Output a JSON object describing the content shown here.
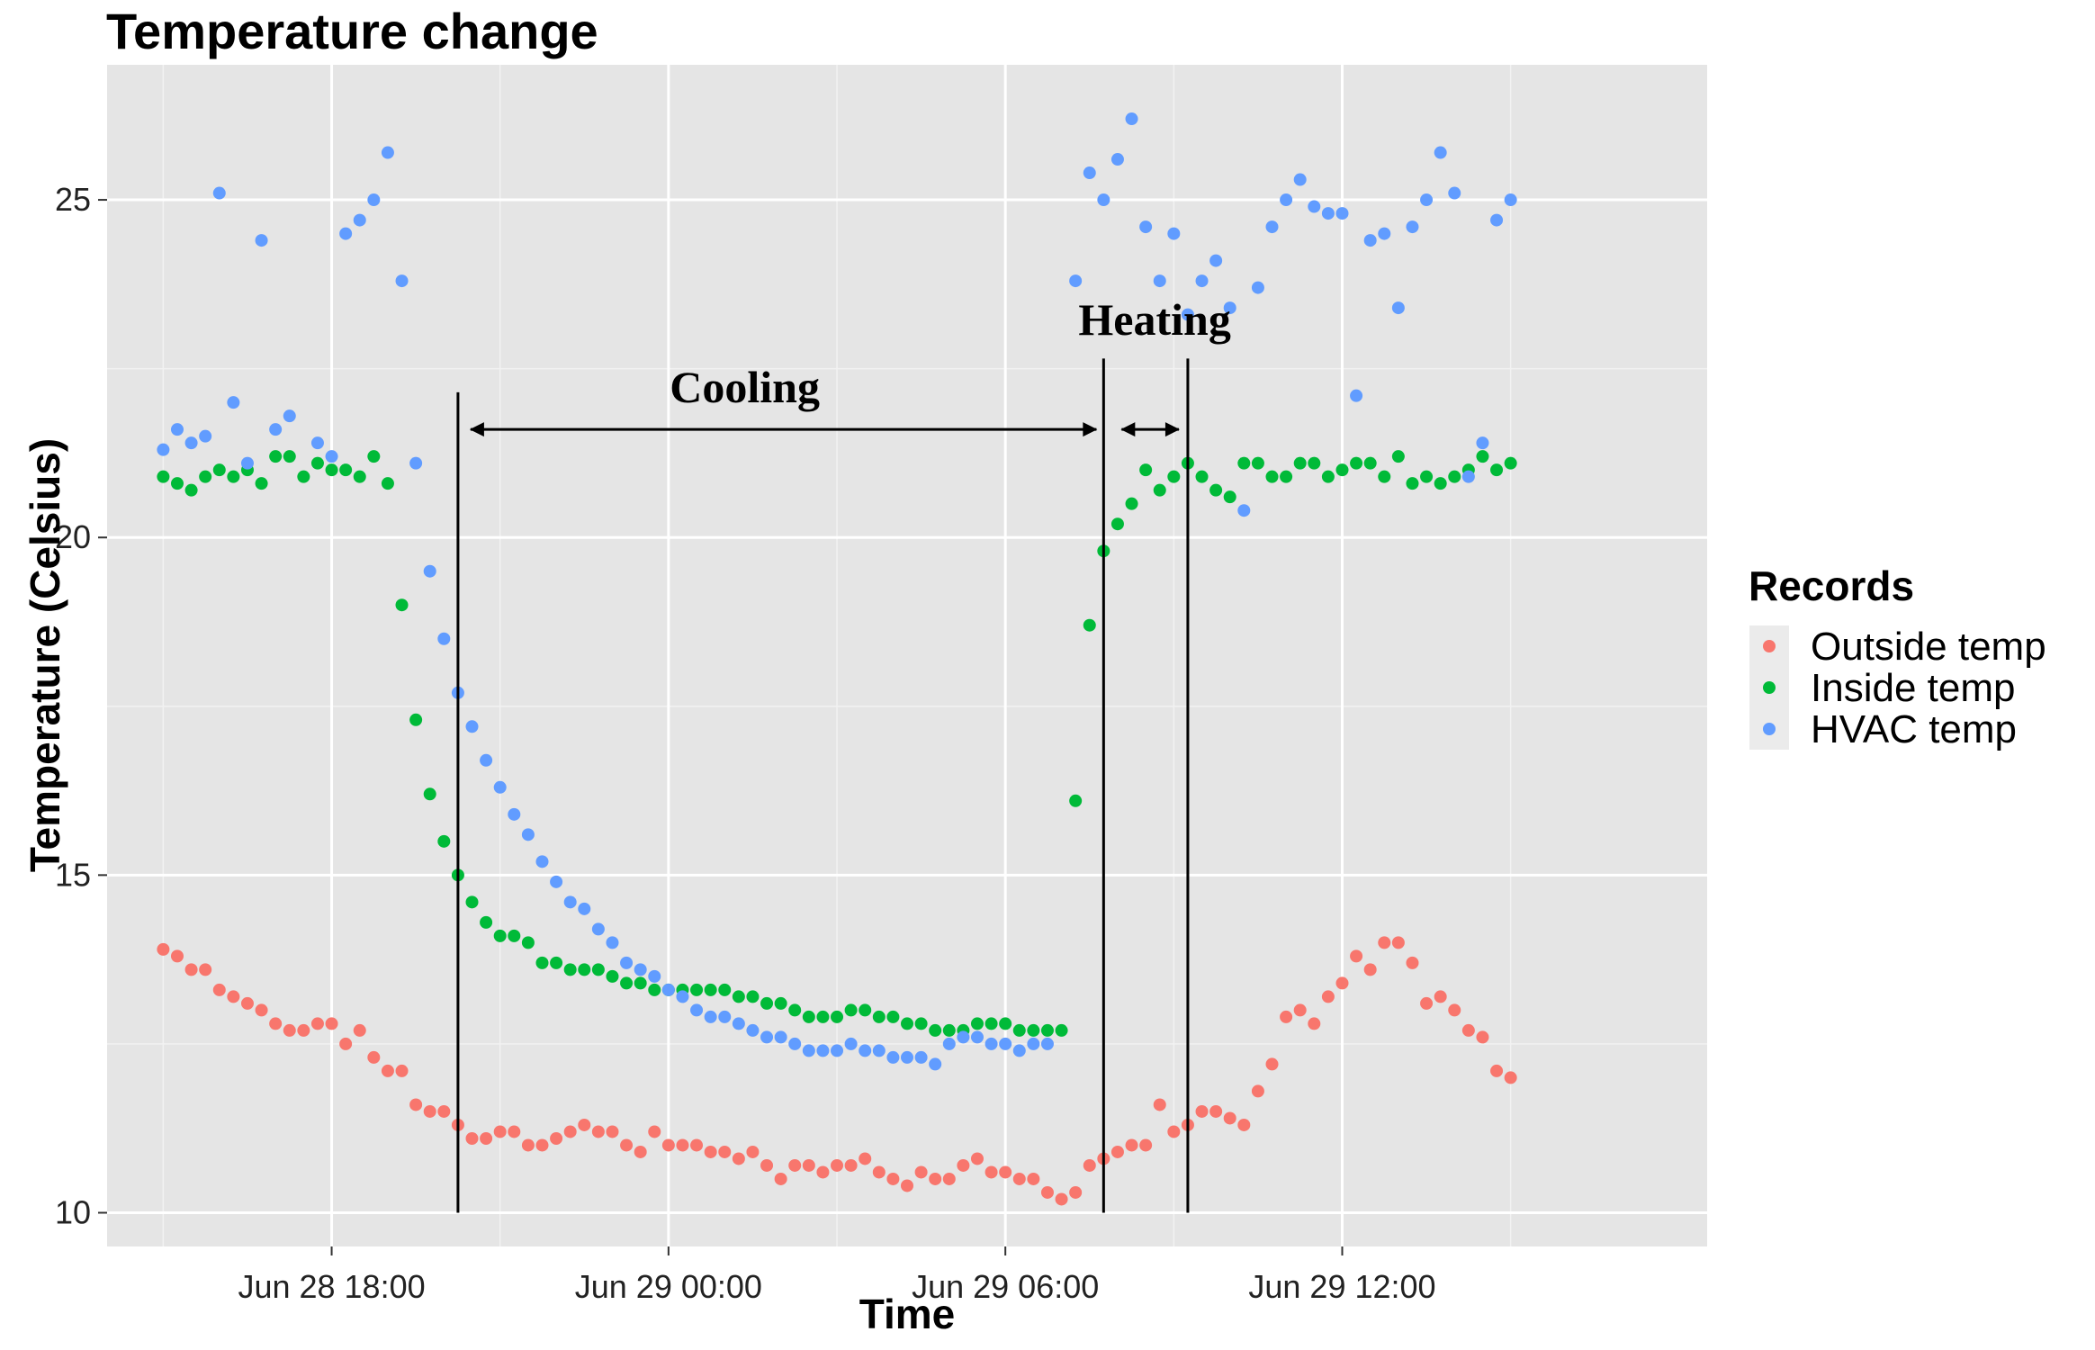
{
  "chart_data": {
    "type": "scatter",
    "title": "Temperature change",
    "xlabel": "Time",
    "ylabel": "Temperature (Celsius)",
    "x_start": "Jun 28 15:00",
    "x_step_minutes": 15,
    "x_ticks": [
      "Jun 28 18:00",
      "Jun 29 00:00",
      "Jun 29 06:00",
      "Jun 29 12:00"
    ],
    "xlim": [
      "Jun 28 14:00",
      "Jun 29 18:30"
    ],
    "y_ticks": [
      10,
      15,
      20,
      25
    ],
    "ylim": [
      9.5,
      27
    ],
    "grid": true,
    "background": "#e5e5e5",
    "legend": {
      "title": "Records",
      "position": "right"
    },
    "series": [
      {
        "name": "Outside temp",
        "color": "#f8766d",
        "values": [
          13.9,
          13.8,
          13.6,
          13.6,
          13.3,
          13.2,
          13.1,
          13.0,
          12.8,
          12.7,
          12.7,
          12.8,
          12.8,
          12.5,
          12.7,
          12.3,
          12.1,
          12.1,
          11.6,
          11.5,
          11.5,
          11.3,
          11.1,
          11.1,
          11.2,
          11.2,
          11.0,
          11.0,
          11.1,
          11.2,
          11.3,
          11.2,
          11.2,
          11.0,
          10.9,
          11.2,
          11.0,
          11.0,
          11.0,
          10.9,
          10.9,
          10.8,
          10.9,
          10.7,
          10.5,
          10.7,
          10.7,
          10.6,
          10.7,
          10.7,
          10.8,
          10.6,
          10.5,
          10.4,
          10.6,
          10.5,
          10.5,
          10.7,
          10.8,
          10.6,
          10.6,
          10.5,
          10.5,
          10.3,
          10.2,
          10.3,
          10.7,
          10.8,
          10.9,
          11.0,
          11.0,
          11.6,
          11.2,
          11.3,
          11.5,
          11.5,
          11.4,
          11.3,
          11.8,
          12.2,
          12.9,
          13.0,
          12.8,
          13.2,
          13.4,
          13.8,
          13.6,
          14.0,
          14.0,
          13.7,
          13.1,
          13.2,
          13.0,
          12.7,
          12.6,
          12.1,
          12.0
        ]
      },
      {
        "name": "Inside temp",
        "color": "#00ba38",
        "values": [
          20.9,
          20.8,
          20.7,
          20.9,
          21.0,
          20.9,
          21.0,
          20.8,
          21.2,
          21.2,
          20.9,
          21.1,
          21.0,
          21.0,
          20.9,
          21.2,
          20.8,
          19.0,
          17.3,
          16.2,
          15.5,
          15.0,
          14.6,
          14.3,
          14.1,
          14.1,
          14.0,
          13.7,
          13.7,
          13.6,
          13.6,
          13.6,
          13.5,
          13.4,
          13.4,
          13.3,
          13.3,
          13.3,
          13.3,
          13.3,
          13.3,
          13.2,
          13.2,
          13.1,
          13.1,
          13.0,
          12.9,
          12.9,
          12.9,
          13.0,
          13.0,
          12.9,
          12.9,
          12.8,
          12.8,
          12.7,
          12.7,
          12.7,
          12.8,
          12.8,
          12.8,
          12.7,
          12.7,
          12.7,
          12.7,
          16.1,
          18.7,
          19.8,
          20.2,
          20.5,
          21.0,
          20.7,
          20.9,
          21.1,
          20.9,
          20.7,
          20.6,
          21.1,
          21.1,
          20.9,
          20.9,
          21.1,
          21.1,
          20.9,
          21.0,
          21.1,
          21.1,
          20.9,
          21.2,
          20.8,
          20.9,
          20.8,
          20.9,
          21.0,
          21.2,
          21.0,
          21.1
        ]
      },
      {
        "name": "HVAC temp",
        "color": "#619cff",
        "values": [
          21.3,
          21.6,
          21.4,
          21.5,
          25.1,
          22.0,
          21.1,
          24.4,
          21.6,
          21.8,
          null,
          21.4,
          21.2,
          24.5,
          24.7,
          25.0,
          25.7,
          23.8,
          21.1,
          19.5,
          18.5,
          17.7,
          17.2,
          16.7,
          16.3,
          15.9,
          15.6,
          15.2,
          14.9,
          14.6,
          14.5,
          14.2,
          14.0,
          13.7,
          13.6,
          13.5,
          13.3,
          13.2,
          13.0,
          12.9,
          12.9,
          12.8,
          12.7,
          12.6,
          12.6,
          12.5,
          12.4,
          12.4,
          12.4,
          12.5,
          12.4,
          12.4,
          12.3,
          12.3,
          12.3,
          12.2,
          12.5,
          12.6,
          12.6,
          12.5,
          12.5,
          12.4,
          12.5,
          12.5,
          null,
          23.8,
          25.4,
          25.0,
          25.6,
          26.2,
          24.6,
          23.8,
          24.5,
          23.3,
          23.8,
          24.1,
          23.4,
          20.4,
          23.7,
          24.6,
          25.0,
          25.3,
          24.9,
          24.8,
          24.8,
          22.1,
          24.4,
          24.5,
          23.4,
          24.6,
          25.0,
          25.7,
          25.1,
          20.9,
          21.4,
          24.7,
          25.0
        ]
      }
    ],
    "annotations": [
      {
        "label": "Cooling",
        "from": "Jun 28 20:15",
        "to": "Jun 29 07:45"
      },
      {
        "label": "Heating",
        "from": "Jun 29 07:45",
        "to": "Jun 29 09:15"
      }
    ]
  }
}
